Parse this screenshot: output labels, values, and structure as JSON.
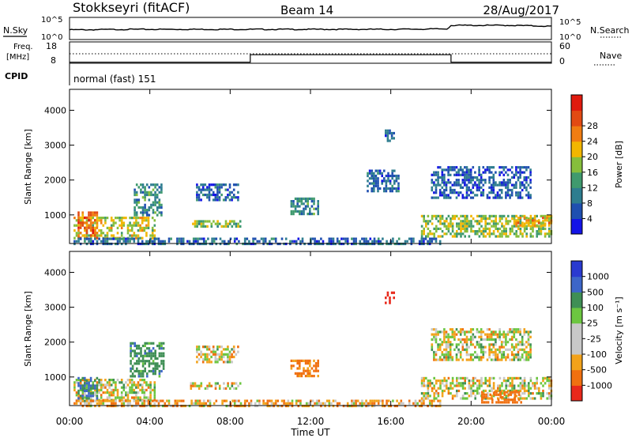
{
  "header": {
    "radar": "Stokkseyri (fitACF)",
    "beam": "Beam 14",
    "date": "28/Aug/2017"
  },
  "side_labels": {
    "nsky": "N.Sky",
    "freq": "Freq.",
    "freq_unit": "[MHz]",
    "cpid": "CPID",
    "nsearch": "N.Search",
    "nave": "Nave"
  },
  "noise_axis": {
    "left_ticks": [
      "10^5",
      "10^0"
    ],
    "right_ticks": [
      "10^5",
      "10^0"
    ]
  },
  "freq_axis": {
    "left_ticks": [
      "18",
      "8"
    ],
    "right_ticks": [
      "60",
      "0"
    ]
  },
  "cpid_text": "normal (fast) 151",
  "y_axis": {
    "label": "Slant Range [km]",
    "ticks": [
      1000,
      2000,
      3000,
      4000
    ],
    "range": [
      180,
      4600
    ]
  },
  "x_axis": {
    "label": "Time UT",
    "ticks": [
      "00:00",
      "04:00",
      "08:00",
      "12:00",
      "16:00",
      "20:00",
      "00:00"
    ],
    "range_hours": [
      0,
      24
    ]
  },
  "power_colorbar": {
    "label": "Power [dB]",
    "ticks": [
      "4",
      "8",
      "12",
      "16",
      "20",
      "24",
      "28"
    ],
    "colors": [
      "#1414e6",
      "#1f4fb0",
      "#2e7d8f",
      "#3f9a6e",
      "#86be3c",
      "#f2b600",
      "#f07d12",
      "#e24a13",
      "#e01a0e"
    ]
  },
  "velocity_colorbar": {
    "label": "Velocity [m s⁻¹]",
    "ticks": [
      "1000",
      "500",
      "100",
      "25",
      "-25",
      "-100",
      "-500",
      "-1000"
    ],
    "colors": [
      "#2a3ad0",
      "#3d66c8",
      "#3f8f55",
      "#6cc640",
      "#c8c8c8",
      "#c8c8c8",
      "#f2a21a",
      "#f07010",
      "#e8281b"
    ]
  },
  "chart_data": [
    {
      "type": "line",
      "title": "",
      "series": [
        {
          "name": "N.Sky",
          "x_hours": [
            0,
            0.5,
            3,
            8,
            12,
            16,
            18.8,
            19,
            22,
            24
          ],
          "log10_values": [
            2.2,
            2.2,
            2.3,
            2.3,
            2.3,
            2.3,
            2.4,
            3.2,
            3.2,
            3.0
          ]
        },
        {
          "name": "N.Search",
          "x_hours": [
            0,
            24
          ],
          "log10_values": [
            2.1,
            2.1
          ]
        }
      ],
      "xlim": [
        0,
        24
      ],
      "ylim": [
        "10^0",
        "10^5"
      ]
    },
    {
      "type": "line",
      "series": [
        {
          "name": "Freq.",
          "x_hours": [
            0,
            9,
            9,
            19,
            19,
            24
          ],
          "values_mhz": [
            8.5,
            8.5,
            12.0,
            12.0,
            8.5,
            8.5
          ]
        },
        {
          "name": "Nave",
          "x_hours": [
            0,
            24
          ],
          "values": [
            40,
            40
          ]
        }
      ],
      "ylim_freq": [
        8,
        18
      ],
      "ylim_nave": [
        0,
        60
      ]
    },
    {
      "type": "heatmap",
      "quantity": "Power [dB]",
      "xlabel": "Time UT",
      "ylabel": "Slant Range [km]",
      "xlim_hours": [
        0,
        24
      ],
      "ylim_km": [
        180,
        4600
      ],
      "echo_regions": [
        {
          "t_start": 0.2,
          "t_end": 4.2,
          "r_min": 300,
          "r_max": 950,
          "power_db": 18
        },
        {
          "t_start": 0.4,
          "t_end": 1.4,
          "r_min": 350,
          "r_max": 1100,
          "power_db": 26
        },
        {
          "t_start": 0.2,
          "t_end": 18.5,
          "r_min": 200,
          "r_max": 350,
          "power_db": 6
        },
        {
          "t_start": 3.2,
          "t_end": 4.6,
          "r_min": 1000,
          "r_max": 1900,
          "power_db": 10
        },
        {
          "t_start": 6.0,
          "t_end": 8.5,
          "r_min": 700,
          "r_max": 850,
          "power_db": 14
        },
        {
          "t_start": 6.3,
          "t_end": 8.4,
          "r_min": 1400,
          "r_max": 1900,
          "power_db": 6
        },
        {
          "t_start": 11.0,
          "t_end": 12.4,
          "r_min": 1050,
          "r_max": 1500,
          "power_db": 10
        },
        {
          "t_start": 14.8,
          "t_end": 16.4,
          "r_min": 1700,
          "r_max": 2300,
          "power_db": 6
        },
        {
          "t_start": 15.7,
          "t_end": 16.2,
          "r_min": 3150,
          "r_max": 3450,
          "power_db": 5
        },
        {
          "t_start": 17.5,
          "t_end": 24.0,
          "r_min": 350,
          "r_max": 1000,
          "power_db": 16
        },
        {
          "t_start": 22.2,
          "t_end": 24.0,
          "r_min": 700,
          "r_max": 950,
          "power_db": 22
        },
        {
          "t_start": 18.0,
          "t_end": 23.0,
          "r_min": 1500,
          "r_max": 2400,
          "power_db": 5
        }
      ]
    },
    {
      "type": "heatmap",
      "quantity": "Velocity [m s-1]",
      "xlabel": "Time UT",
      "ylabel": "Slant Range [km]",
      "xlim_hours": [
        0,
        24
      ],
      "ylim_km": [
        180,
        4600
      ],
      "echo_regions": [
        {
          "t_start": 0.2,
          "t_end": 4.2,
          "r_min": 300,
          "r_max": 950,
          "velocity": 0
        },
        {
          "t_start": 0.4,
          "t_end": 1.4,
          "r_min": 300,
          "r_max": 1000,
          "velocity": 300
        },
        {
          "t_start": 3.0,
          "t_end": 4.7,
          "r_min": 1000,
          "r_max": 2000,
          "velocity": 200
        },
        {
          "t_start": 0.2,
          "t_end": 18.5,
          "r_min": 200,
          "r_max": 350,
          "velocity": -80
        },
        {
          "t_start": 6.0,
          "t_end": 8.5,
          "r_min": 700,
          "r_max": 850,
          "velocity": 0
        },
        {
          "t_start": 6.3,
          "t_end": 8.4,
          "r_min": 1400,
          "r_max": 1900,
          "velocity": 0
        },
        {
          "t_start": 11.0,
          "t_end": 12.4,
          "r_min": 1050,
          "r_max": 1500,
          "velocity": -150
        },
        {
          "t_start": 15.7,
          "t_end": 16.2,
          "r_min": 3150,
          "r_max": 3450,
          "velocity": -900
        },
        {
          "t_start": 17.5,
          "t_end": 24.0,
          "r_min": 350,
          "r_max": 1000,
          "velocity": 0
        },
        {
          "t_start": 20.5,
          "t_end": 22.5,
          "r_min": 250,
          "r_max": 600,
          "velocity": -300
        },
        {
          "t_start": 18.0,
          "t_end": 23.0,
          "r_min": 1500,
          "r_max": 2400,
          "velocity": 0
        }
      ]
    }
  ]
}
